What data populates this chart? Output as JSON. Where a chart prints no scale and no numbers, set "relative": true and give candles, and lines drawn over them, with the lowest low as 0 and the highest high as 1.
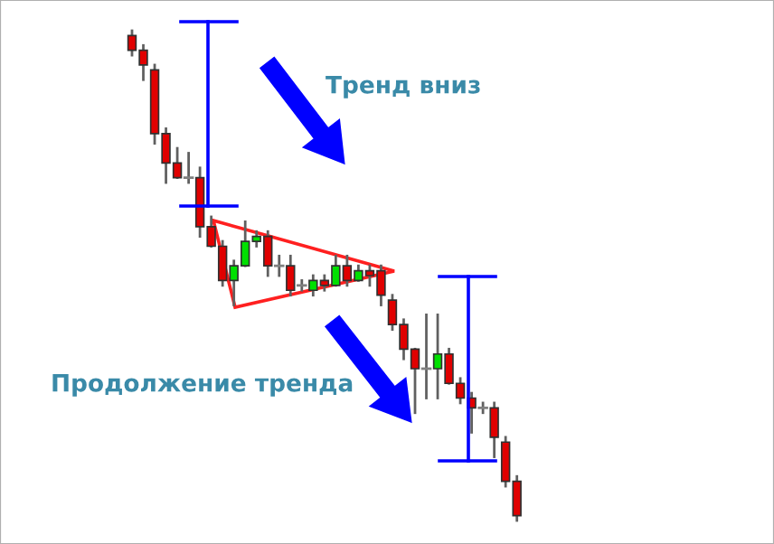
{
  "chart_data": {
    "type": "candlestick",
    "relative": true,
    "categories": [
      null,
      null,
      null,
      null,
      null,
      null,
      null,
      null,
      null,
      null,
      null,
      null,
      null,
      null,
      null,
      null,
      null,
      null,
      null,
      null,
      null,
      null,
      null,
      null,
      null,
      null,
      null,
      null,
      null,
      null,
      null,
      null,
      null,
      null,
      null
    ],
    "ohlc": [
      [
        0.99,
        1.0,
        0.95,
        0.96
      ],
      [
        0.96,
        0.97,
        0.9,
        0.93
      ],
      [
        0.92,
        0.93,
        0.77,
        0.79
      ],
      [
        0.79,
        0.8,
        0.69,
        0.73
      ],
      [
        0.73,
        0.76,
        0.7,
        0.7
      ],
      [
        0.7,
        0.75,
        0.69,
        0.7
      ],
      [
        0.7,
        0.72,
        0.58,
        0.6
      ],
      [
        0.6,
        0.62,
        0.56,
        0.56
      ],
      [
        0.56,
        0.57,
        0.48,
        0.49
      ],
      [
        0.49,
        0.53,
        0.44,
        0.52
      ],
      [
        0.52,
        0.61,
        0.52,
        0.57
      ],
      [
        0.57,
        0.59,
        0.56,
        0.58
      ],
      [
        0.58,
        0.59,
        0.5,
        0.52
      ],
      [
        0.52,
        0.54,
        0.5,
        0.52
      ],
      [
        0.52,
        0.54,
        0.46,
        0.47
      ],
      [
        0.48,
        0.49,
        0.47,
        0.48
      ],
      [
        0.47,
        0.5,
        0.46,
        0.49
      ],
      [
        0.49,
        0.5,
        0.47,
        0.48
      ],
      [
        0.48,
        0.54,
        0.48,
        0.52
      ],
      [
        0.52,
        0.54,
        0.48,
        0.49
      ],
      [
        0.49,
        0.52,
        0.49,
        0.51
      ],
      [
        0.51,
        0.52,
        0.48,
        0.5
      ],
      [
        0.51,
        0.52,
        0.44,
        0.46
      ],
      [
        0.45,
        0.46,
        0.39,
        0.4
      ],
      [
        0.4,
        0.41,
        0.33,
        0.35
      ],
      [
        0.35,
        0.35,
        0.22,
        0.31
      ],
      [
        0.31,
        0.42,
        0.25,
        0.31
      ],
      [
        0.31,
        0.42,
        0.25,
        0.34
      ],
      [
        0.34,
        0.35,
        0.28,
        0.28
      ],
      [
        0.28,
        0.29,
        0.24,
        0.25
      ],
      [
        0.25,
        0.26,
        0.18,
        0.23
      ],
      [
        0.23,
        0.24,
        0.22,
        0.23
      ],
      [
        0.23,
        0.24,
        0.13,
        0.17
      ],
      [
        0.16,
        0.17,
        0.07,
        0.08
      ],
      [
        0.08,
        0.09,
        0.0,
        0.01
      ]
    ],
    "colors": [
      "#e00000",
      "#e00000",
      "#e00000",
      "#e00000",
      "#e00000",
      "#808080",
      "#e00000",
      "#e00000",
      "#e00000",
      "#00e000",
      "#00e000",
      "#00e000",
      "#e00000",
      "#808080",
      "#e00000",
      "#808080",
      "#00e000",
      "#e00000",
      "#00e000",
      "#e00000",
      "#00e000",
      "#e00000",
      "#e00000",
      "#e00000",
      "#e00000",
      "#e00000",
      "#808080",
      "#00e000",
      "#e00000",
      "#e00000",
      "#e00000",
      "#808080",
      "#e00000",
      "#e00000",
      "#e00000"
    ],
    "annotations": [
      "Тренд вниз",
      "Продолжение тренда"
    ]
  }
}
